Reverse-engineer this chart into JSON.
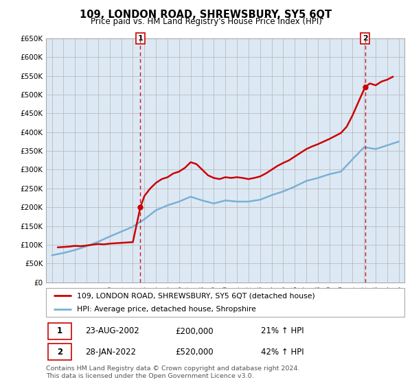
{
  "title": "109, LONDON ROAD, SHREWSBURY, SY5 6QT",
  "subtitle": "Price paid vs. HM Land Registry's House Price Index (HPI)",
  "ytick_values": [
    0,
    50000,
    100000,
    150000,
    200000,
    250000,
    300000,
    350000,
    400000,
    450000,
    500000,
    550000,
    600000,
    650000
  ],
  "ylabel_ticks": [
    "£0",
    "£50K",
    "£100K",
    "£150K",
    "£200K",
    "£250K",
    "£300K",
    "£350K",
    "£400K",
    "£450K",
    "£500K",
    "£550K",
    "£600K",
    "£650K"
  ],
  "house_color": "#cc0000",
  "hpi_color": "#7ab0d4",
  "vline_color": "#cc0000",
  "grid_color": "#bbbbbb",
  "bg_color": "#dce9f5",
  "legend_entries": [
    "109, LONDON ROAD, SHREWSBURY, SY5 6QT (detached house)",
    "HPI: Average price, detached house, Shropshire"
  ],
  "annotation1_date": "23-AUG-2002",
  "annotation1_price": "£200,000",
  "annotation1_hpi": "21% ↑ HPI",
  "annotation2_date": "28-JAN-2022",
  "annotation2_price": "£520,000",
  "annotation2_hpi": "42% ↑ HPI",
  "footer": "Contains HM Land Registry data © Crown copyright and database right 2024.\nThis data is licensed under the Open Government Licence v3.0.",
  "xlim": [
    1994.5,
    2025.5
  ],
  "ylim": [
    0,
    650000
  ],
  "sale1_x": 2002.648,
  "sale1_y": 200000,
  "sale2_x": 2022.08,
  "sale2_y": 520000,
  "hpi_years": [
    1995,
    1996,
    1997,
    1998,
    1999,
    2000,
    2001,
    2002,
    2003,
    2004,
    2005,
    2006,
    2007,
    2008,
    2009,
    2010,
    2011,
    2012,
    2013,
    2014,
    2015,
    2016,
    2017,
    2018,
    2019,
    2020,
    2021,
    2022,
    2023,
    2024,
    2025
  ],
  "hpi_values": [
    72000,
    78000,
    86000,
    96000,
    108000,
    122000,
    135000,
    148000,
    168000,
    192000,
    205000,
    215000,
    228000,
    218000,
    210000,
    218000,
    215000,
    215000,
    220000,
    232000,
    242000,
    255000,
    270000,
    278000,
    288000,
    295000,
    328000,
    360000,
    355000,
    365000,
    375000
  ],
  "house_years": [
    1995.5,
    1996.0,
    1996.5,
    1997.0,
    1997.5,
    1998.0,
    1998.5,
    1999.0,
    1999.5,
    2000.0,
    2000.5,
    2001.0,
    2001.5,
    2002.0,
    2002.648,
    2003.0,
    2003.5,
    2004.0,
    2004.5,
    2005.0,
    2005.5,
    2006.0,
    2006.5,
    2007.0,
    2007.5,
    2008.0,
    2008.5,
    2009.0,
    2009.5,
    2010.0,
    2010.5,
    2011.0,
    2011.5,
    2012.0,
    2012.5,
    2013.0,
    2013.5,
    2014.0,
    2014.5,
    2015.0,
    2015.5,
    2016.0,
    2016.5,
    2017.0,
    2017.5,
    2018.0,
    2018.5,
    2019.0,
    2019.5,
    2020.0,
    2020.5,
    2021.0,
    2021.5,
    2022.08,
    2022.5,
    2023.0,
    2023.5,
    2024.0,
    2024.5
  ],
  "house_values": [
    93000,
    94000,
    95000,
    97000,
    96000,
    98000,
    100000,
    102000,
    101000,
    103000,
    104000,
    105000,
    106000,
    107000,
    200000,
    230000,
    250000,
    265000,
    275000,
    280000,
    290000,
    295000,
    305000,
    320000,
    315000,
    300000,
    285000,
    278000,
    275000,
    280000,
    278000,
    280000,
    278000,
    275000,
    278000,
    282000,
    290000,
    300000,
    310000,
    318000,
    325000,
    335000,
    345000,
    355000,
    362000,
    368000,
    375000,
    382000,
    390000,
    398000,
    415000,
    445000,
    480000,
    520000,
    530000,
    525000,
    535000,
    540000,
    548000
  ]
}
